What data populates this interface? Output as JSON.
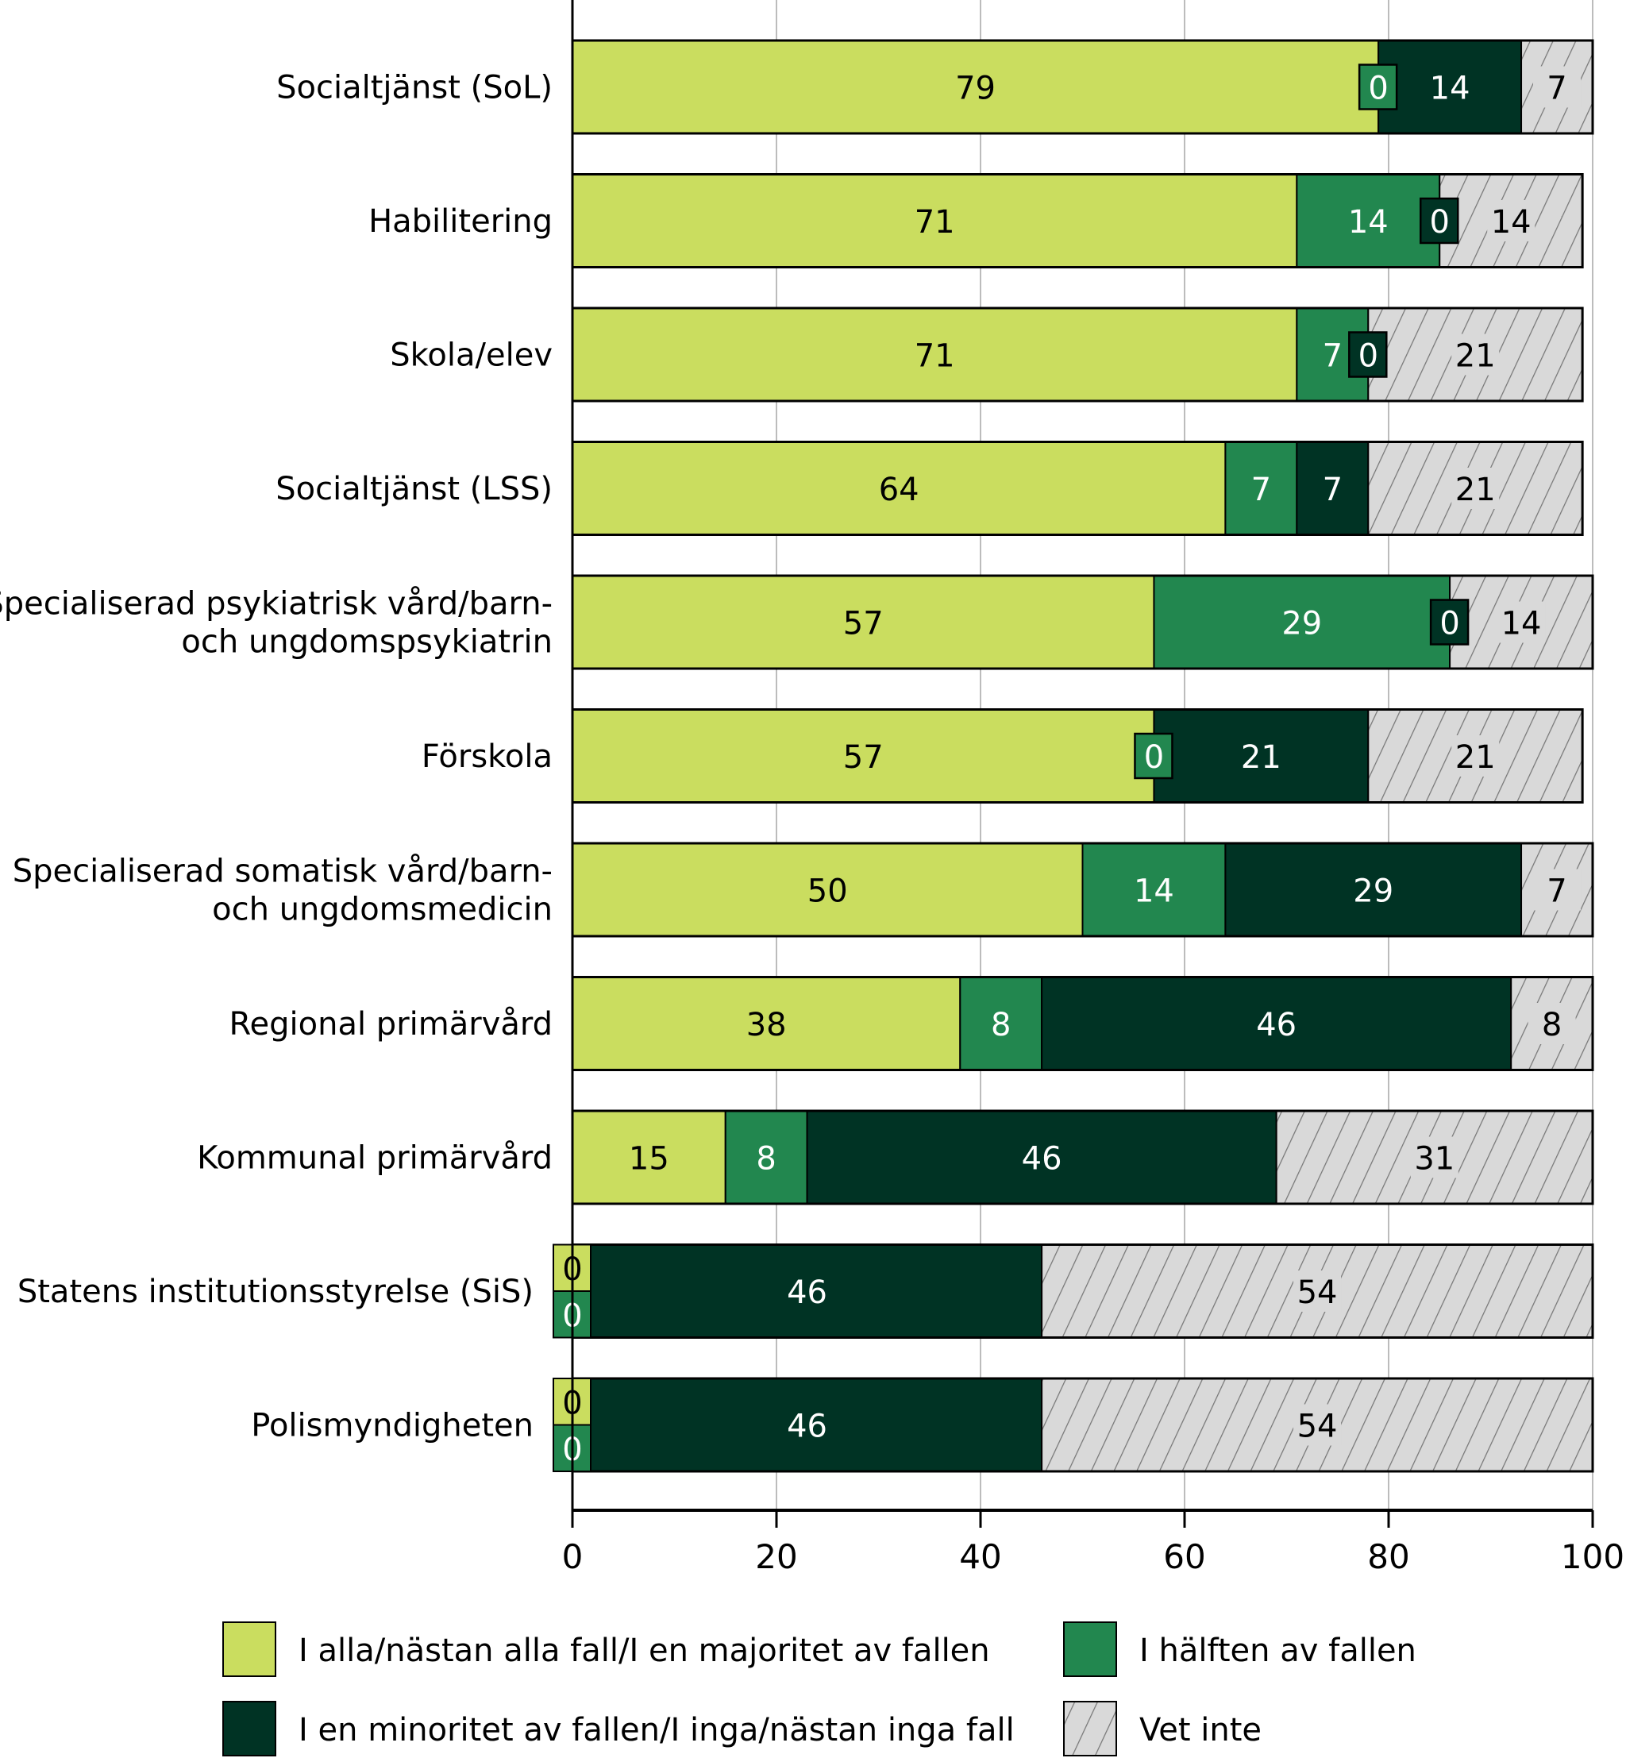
{
  "chart_data": {
    "type": "bar",
    "orientation": "horizontal",
    "stacked": true,
    "categories": [
      [
        "Socialtjänst (SoL)"
      ],
      [
        "Habilitering"
      ],
      [
        "Skola/elev"
      ],
      [
        "Socialtjänst (LSS)"
      ],
      [
        "Specialiserad psykiatrisk vård/barn-",
        "och ungdomspsykiatrin"
      ],
      [
        "Förskola"
      ],
      [
        "Specialiserad somatisk vård/barn-",
        "och ungdomsmedicin"
      ],
      [
        "Regional primärvård"
      ],
      [
        "Kommunal primärvård"
      ],
      [
        "Statens institutionsstyrelse (SiS)"
      ],
      [
        "Polismyndigheten"
      ]
    ],
    "series": [
      {
        "name": "I alla/nästan alla fall/I en majoritet av fallen",
        "color": "#cadd5f",
        "text_color": "#000000",
        "values": [
          79,
          71,
          71,
          64,
          57,
          57,
          50,
          38,
          15,
          0,
          0
        ]
      },
      {
        "name": "I hälften av fallen",
        "color": "#22874f",
        "text_color": "#ffffff",
        "values": [
          0,
          14,
          7,
          7,
          29,
          0,
          14,
          8,
          8,
          0,
          0
        ]
      },
      {
        "name": "I en minoritet av fallen/I inga/nästan inga fall",
        "color": "#003324",
        "text_color": "#ffffff",
        "values": [
          14,
          0,
          0,
          7,
          0,
          21,
          29,
          46,
          46,
          46,
          46
        ]
      },
      {
        "name": "Vet inte",
        "color": "#d9d9d9",
        "pattern": "hatched",
        "text_color": "#000000",
        "values": [
          7,
          14,
          21,
          21,
          14,
          21,
          7,
          8,
          31,
          54,
          54
        ]
      }
    ],
    "xlim": [
      0,
      100
    ],
    "xticks": [
      "0",
      "20",
      "40",
      "60",
      "80",
      "100"
    ],
    "grid": true,
    "legend_position": "bottom",
    "data_labels": true
  }
}
